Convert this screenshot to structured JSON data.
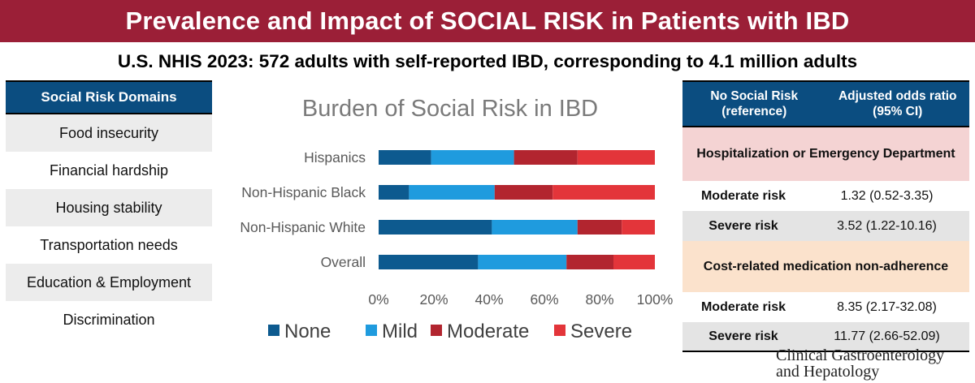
{
  "banner": {
    "title": "Prevalence and Impact of SOCIAL RISK in Patients with IBD"
  },
  "subtitle": "U.S. NHIS 2023: 572 adults with self-reported IBD, corresponding to 4.1 million adults",
  "domains": {
    "header": "Social Risk Domains",
    "items": [
      "Food insecurity",
      "Financial hardship",
      "Housing stability",
      "Transportation needs",
      "Education & Employment",
      "Discrimination"
    ]
  },
  "colors": {
    "none": "#0d5a8f",
    "mild": "#1f9bde",
    "moderate": "#b2252f",
    "severe": "#e3353a",
    "banner": "#9b1f37",
    "table_header": "#0b4d80"
  },
  "chart_data": {
    "type": "bar",
    "orientation": "horizontal",
    "stacked": true,
    "title": "Burden of Social Risk in IBD",
    "categories": [
      "Hispanics",
      "Non-Hispanic Black",
      "Non-Hispanic White",
      "Overall"
    ],
    "series": [
      {
        "name": "None",
        "values": [
          19,
          11,
          41,
          36
        ]
      },
      {
        "name": "Mild",
        "values": [
          30,
          31,
          31,
          32
        ]
      },
      {
        "name": "Moderate",
        "values": [
          23,
          21,
          16,
          17
        ]
      },
      {
        "name": "Severe",
        "values": [
          28,
          37,
          12,
          15
        ]
      }
    ],
    "xlim": [
      0,
      100
    ],
    "xticks": [
      "0%",
      "20%",
      "40%",
      "60%",
      "80%",
      "100%"
    ],
    "legend_position": "bottom",
    "grid": false
  },
  "odds_table": {
    "col1_header": "No Social Risk (reference)",
    "col2_header": "Adjusted odds ratio (95% CI)",
    "sections": [
      {
        "title": "Hospitalization or Emergency Department",
        "rows": [
          {
            "label": "Moderate risk",
            "value": "1.32 (0.52-3.35)"
          },
          {
            "label": "Severe risk",
            "value": "3.52 (1.22-10.16)"
          }
        ]
      },
      {
        "title": "Cost-related medication non-adherence",
        "rows": [
          {
            "label": "Moderate risk",
            "value": "8.35 (2.17-32.08)"
          },
          {
            "label": "Severe risk",
            "value": "11.77 (2.66-52.09)"
          }
        ]
      }
    ]
  },
  "journal": {
    "line1": "Clinical Gastroenterology",
    "line2": "and Hepatology"
  }
}
